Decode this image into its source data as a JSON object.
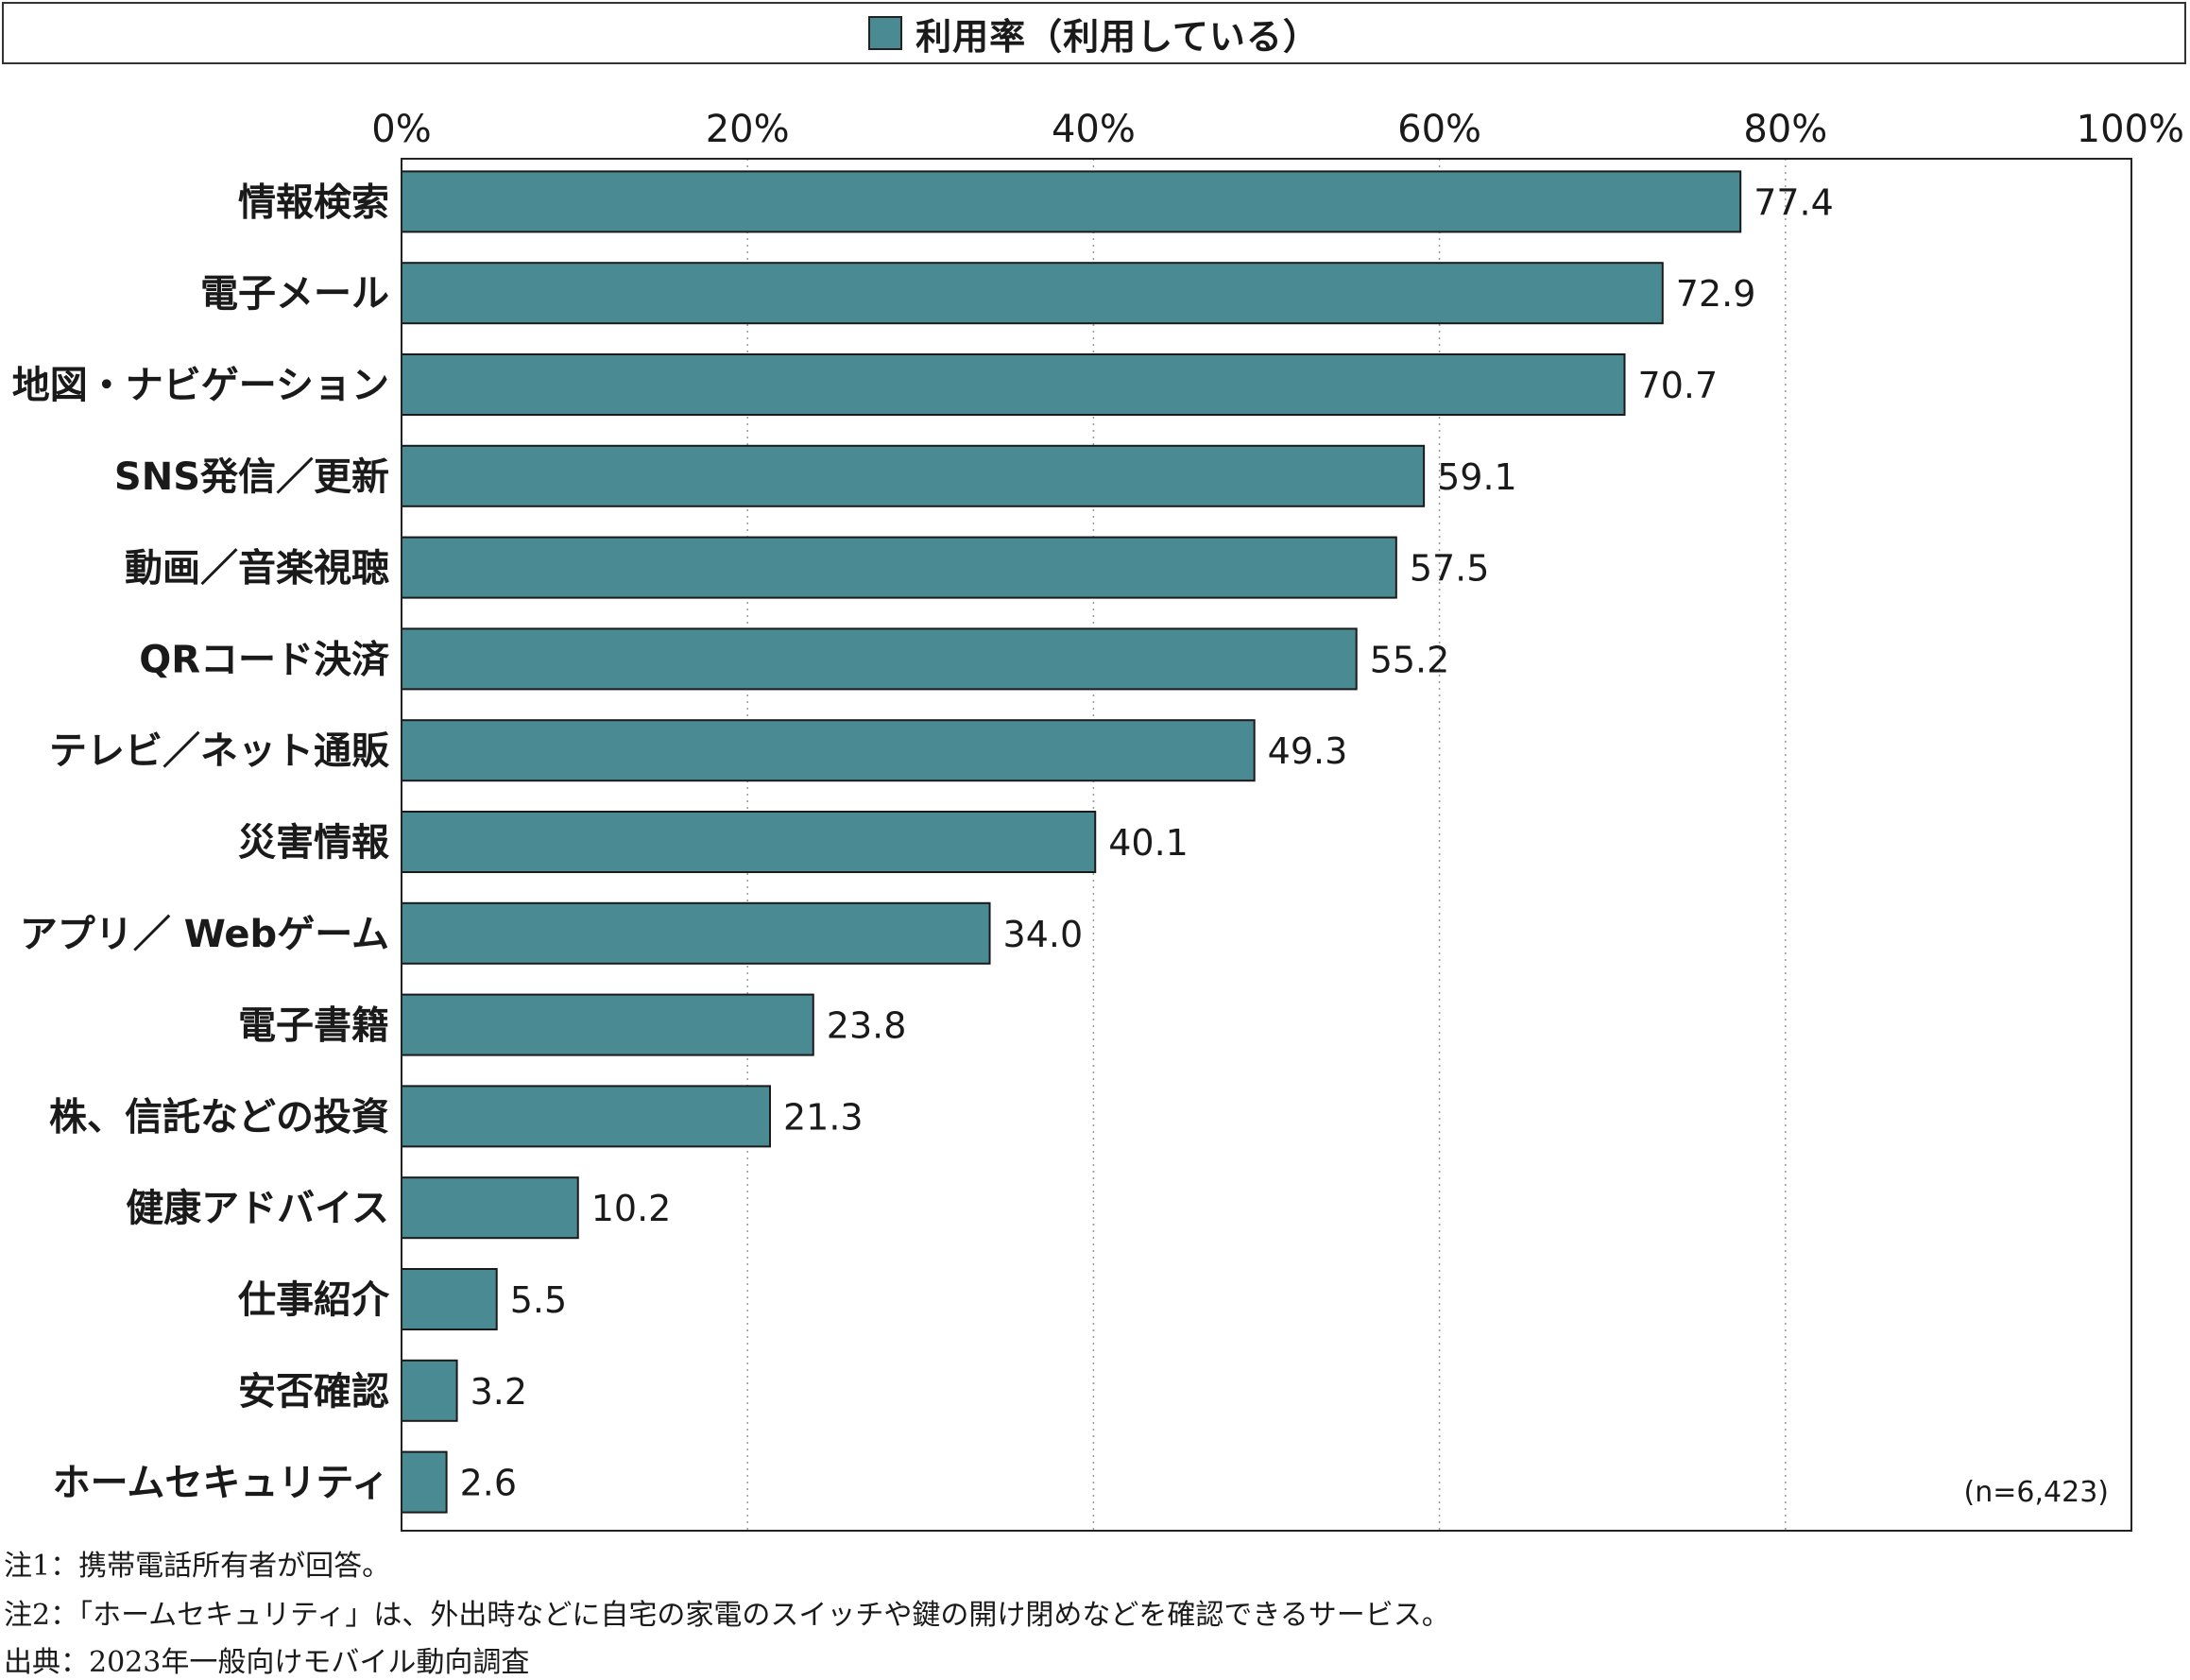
{
  "legend": {
    "label": "利用率（利用している）",
    "color": "#4a8a93"
  },
  "chart_data": {
    "type": "bar",
    "orientation": "horizontal",
    "categories": [
      "情報検索",
      "電子メール",
      "地図・ナビゲーション",
      "SNS発信／更新",
      "動画／音楽視聴",
      "QRコード決済",
      "テレビ／ネット通販",
      "災害情報",
      "アプリ／ Webゲーム",
      "電子書籍",
      "株、信託などの投資",
      "健康アドバイス",
      "仕事紹介",
      "安否確認",
      "ホームセキュリティ"
    ],
    "series": [
      {
        "name": "利用率（利用している）",
        "values": [
          77.4,
          72.9,
          70.7,
          59.1,
          57.5,
          55.2,
          49.3,
          40.1,
          34.0,
          23.8,
          21.3,
          10.2,
          5.5,
          3.2,
          2.6
        ]
      }
    ],
    "value_labels": [
      "77.4",
      "72.9",
      "70.7",
      "59.1",
      "57.5",
      "55.2",
      "49.3",
      "40.1",
      "34.0",
      "23.8",
      "21.3",
      "10.2",
      "5.5",
      "3.2",
      "2.6"
    ],
    "xlim": [
      0,
      100
    ],
    "xticks": [
      "0%",
      "20%",
      "40%",
      "60%",
      "80%",
      "100%"
    ],
    "grid": true,
    "legend_position": "top",
    "bar_color": "#4a8a93"
  },
  "sample_size": "(n=6,423)",
  "notes": [
    "注1：携帯電話所有者が回答。",
    "注2：「ホームセキュリティ」は、外出時などに自宅の家電のスイッチや鍵の開け閉めなどを確認できるサービス。",
    "出典：2023年一般向けモバイル動向調査"
  ]
}
